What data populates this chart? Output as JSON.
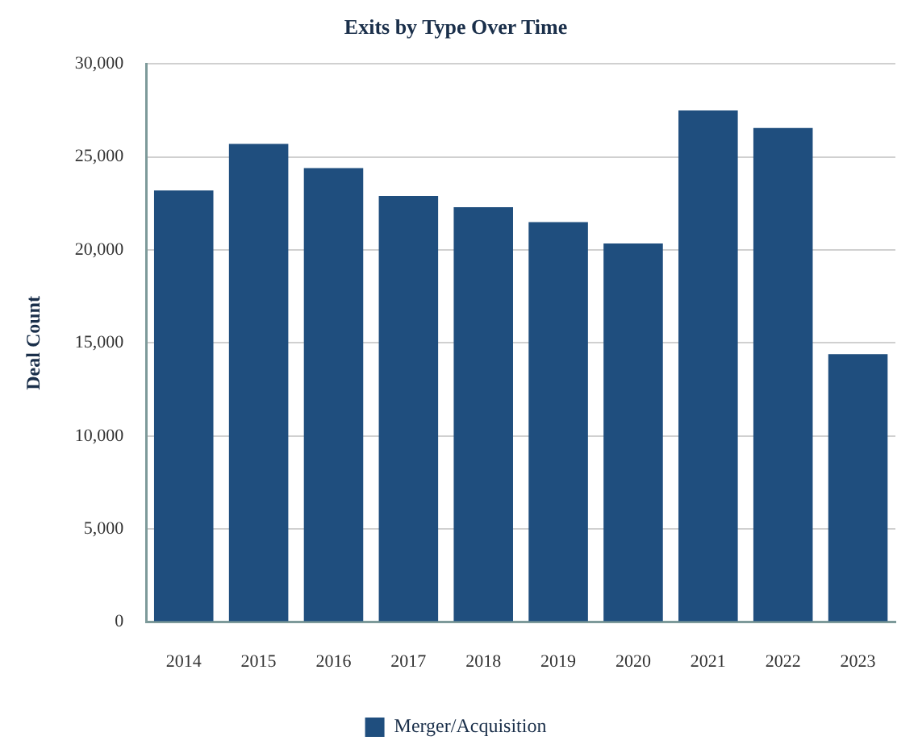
{
  "chart_data": {
    "type": "bar",
    "title": "Exits by Type Over Time",
    "ylabel": "Deal Count",
    "categories": [
      "2014",
      "2015",
      "2016",
      "2017",
      "2018",
      "2019",
      "2020",
      "2021",
      "2022",
      "2023"
    ],
    "series": [
      {
        "name": "Merger/Acquisition",
        "color": "#1f4e7e",
        "values": [
          23200,
          25700,
          24400,
          22900,
          22300,
          21500,
          20350,
          27500,
          26550,
          14400
        ]
      }
    ],
    "ylim": [
      0,
      30000
    ],
    "yticks": [
      0,
      {
        "value": 5000,
        "label": "5,000"
      },
      {
        "value": 10000,
        "label": "10,000"
      },
      {
        "value": 15000,
        "label": "15,000"
      },
      {
        "value": 20000,
        "label": "20,000"
      },
      {
        "value": 25000,
        "label": "25,000"
      },
      {
        "value": 30000,
        "label": "30,000"
      }
    ],
    "grid": "y",
    "legend": "bottom"
  }
}
